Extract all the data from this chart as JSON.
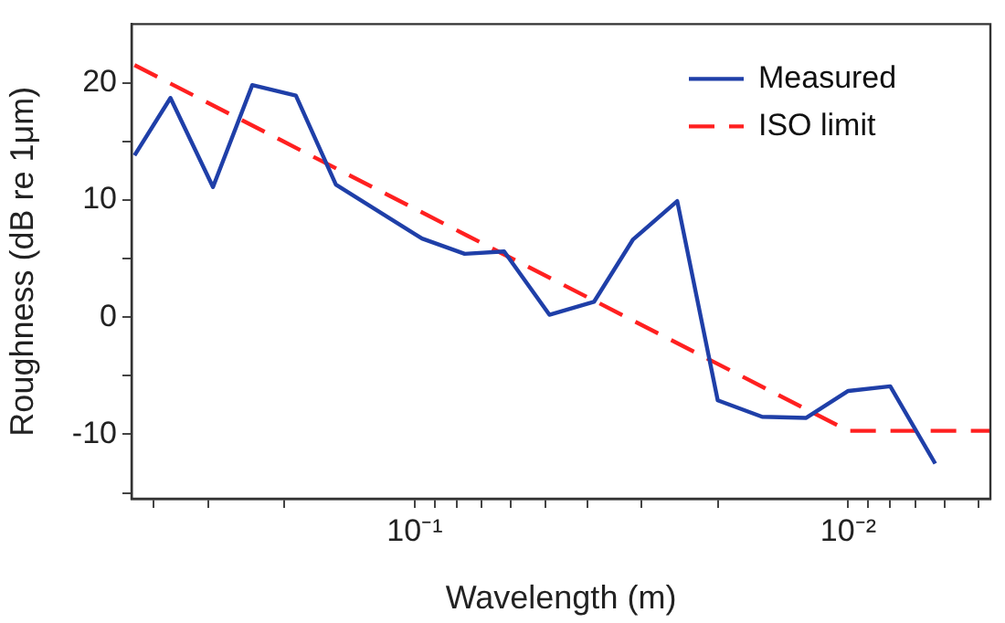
{
  "chart_data": {
    "type": "line",
    "xlabel": "Wavelength (m)",
    "ylabel": "Roughness (dB re 1μm)",
    "log": "x",
    "xlim": [
      0.45,
      0.0047
    ],
    "ylim": [
      -15.5,
      25
    ],
    "xticks": [
      {
        "value": 0.4,
        "label": null
      },
      {
        "value": 0.3,
        "label": null
      },
      {
        "value": 0.2,
        "label": null
      },
      {
        "value": 0.1,
        "label": "10⁻¹"
      },
      {
        "value": 0.09,
        "label": null
      },
      {
        "value": 0.08,
        "label": null
      },
      {
        "value": 0.07,
        "label": null
      },
      {
        "value": 0.06,
        "label": null
      },
      {
        "value": 0.05,
        "label": null
      },
      {
        "value": 0.04,
        "label": null
      },
      {
        "value": 0.03,
        "label": null
      },
      {
        "value": 0.02,
        "label": null
      },
      {
        "value": 0.01,
        "label": "10⁻²"
      },
      {
        "value": 0.009,
        "label": null
      },
      {
        "value": 0.008,
        "label": null
      },
      {
        "value": 0.007,
        "label": null
      },
      {
        "value": 0.006,
        "label": null
      },
      {
        "value": 0.005,
        "label": null
      }
    ],
    "yticks": [
      {
        "value": -15,
        "label": null
      },
      -10,
      {
        "value": -5,
        "label": null
      },
      0,
      {
        "value": 5,
        "label": null
      },
      10,
      {
        "value": 15,
        "label": null
      },
      20
    ],
    "grid": false,
    "legend": "top right",
    "marker": "none",
    "series": [
      {
        "name": "Measured",
        "color": "#1f3fa8",
        "line_style": "solid",
        "x": [
          0.443,
          0.366,
          0.292,
          0.237,
          0.188,
          0.152,
          0.0962,
          0.0767,
          0.0622,
          0.0489,
          0.0386,
          0.0314,
          0.0248,
          0.02,
          0.0158,
          0.0125,
          0.01,
          0.008,
          0.0063
        ],
        "values": [
          13.8,
          18.7,
          11.1,
          19.8,
          18.9,
          11.3,
          6.7,
          5.4,
          5.6,
          0.2,
          1.3,
          6.6,
          9.9,
          -7.1,
          -8.5,
          -8.6,
          -6.3,
          -5.9,
          -12.5
        ]
      },
      {
        "name": "ISO limit",
        "color": "#ff2020",
        "line_style": "dashed",
        "x": [
          0.443,
          0.01,
          0.0047
        ],
        "values": [
          21.5,
          -9.7,
          -9.7
        ]
      }
    ]
  }
}
